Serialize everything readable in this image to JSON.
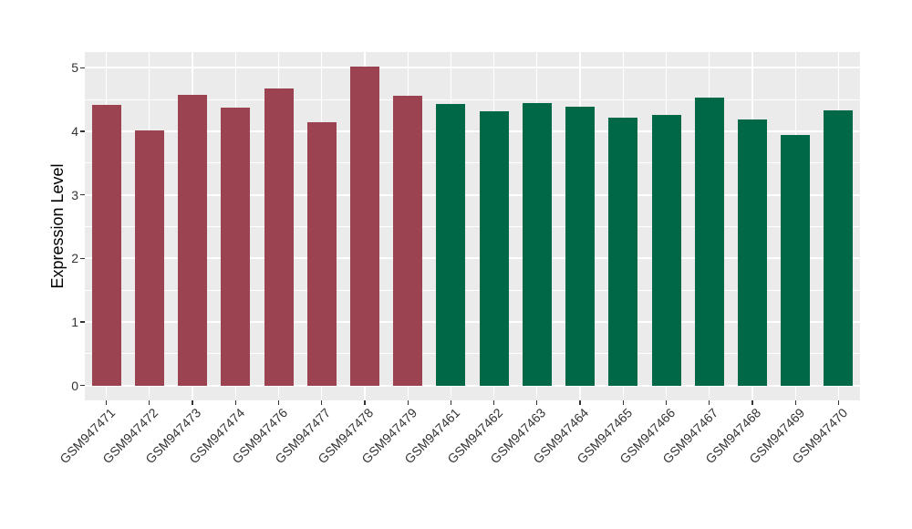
{
  "chart_data": {
    "type": "bar",
    "title": "",
    "xlabel": "",
    "ylabel": "Expression Level",
    "ylim": [
      0,
      5.25
    ],
    "yticks": [
      0,
      1,
      2,
      3,
      4,
      5
    ],
    "minor_yticks": [
      0.5,
      1.5,
      2.5,
      3.5,
      4.5
    ],
    "grid": "major and minor horizontal white lines, vertical white lines at category centers",
    "legend_position": "none",
    "categories": [
      "GSM947471",
      "GSM947472",
      "GSM947473",
      "GSM947474",
      "GSM947476",
      "GSM947477",
      "GSM947478",
      "GSM947479",
      "GSM947461",
      "GSM947462",
      "GSM947463",
      "GSM947464",
      "GSM947465",
      "GSM947466",
      "GSM947467",
      "GSM947468",
      "GSM947469",
      "GSM947470"
    ],
    "values": [
      4.42,
      4.01,
      4.58,
      4.37,
      4.68,
      4.14,
      5.02,
      4.56,
      4.43,
      4.32,
      4.45,
      4.39,
      4.22,
      4.26,
      4.53,
      4.19,
      3.94,
      4.33
    ],
    "bars": [
      {
        "label": "GSM947471",
        "value": 4.42,
        "color": "#9B4350"
      },
      {
        "label": "GSM947472",
        "value": 4.01,
        "color": "#9B4350"
      },
      {
        "label": "GSM947473",
        "value": 4.58,
        "color": "#9B4350"
      },
      {
        "label": "GSM947474",
        "value": 4.37,
        "color": "#9B4350"
      },
      {
        "label": "GSM947476",
        "value": 4.68,
        "color": "#9B4350"
      },
      {
        "label": "GSM947477",
        "value": 4.14,
        "color": "#9B4350"
      },
      {
        "label": "GSM947478",
        "value": 5.02,
        "color": "#9B4350"
      },
      {
        "label": "GSM947479",
        "value": 4.56,
        "color": "#9B4350"
      },
      {
        "label": "GSM947461",
        "value": 4.43,
        "color": "#006847"
      },
      {
        "label": "GSM947462",
        "value": 4.32,
        "color": "#006847"
      },
      {
        "label": "GSM947463",
        "value": 4.45,
        "color": "#006847"
      },
      {
        "label": "GSM947464",
        "value": 4.39,
        "color": "#006847"
      },
      {
        "label": "GSM947465",
        "value": 4.22,
        "color": "#006847"
      },
      {
        "label": "GSM947466",
        "value": 4.26,
        "color": "#006847"
      },
      {
        "label": "GSM947467",
        "value": 4.53,
        "color": "#006847"
      },
      {
        "label": "GSM947468",
        "value": 4.19,
        "color": "#006847"
      },
      {
        "label": "GSM947469",
        "value": 3.94,
        "color": "#006847"
      },
      {
        "label": "GSM947470",
        "value": 4.33,
        "color": "#006847"
      }
    ],
    "color_groups": [
      {
        "color": "#9B4350",
        "bar_count": 8
      },
      {
        "color": "#006847",
        "bar_count": 10
      }
    ]
  },
  "colors": {
    "background": "#FFFFFF",
    "panel_background": "#EBEBEB",
    "gridline": "#FFFFFF",
    "axis_text": "#333333",
    "axis_title": "#000000"
  }
}
